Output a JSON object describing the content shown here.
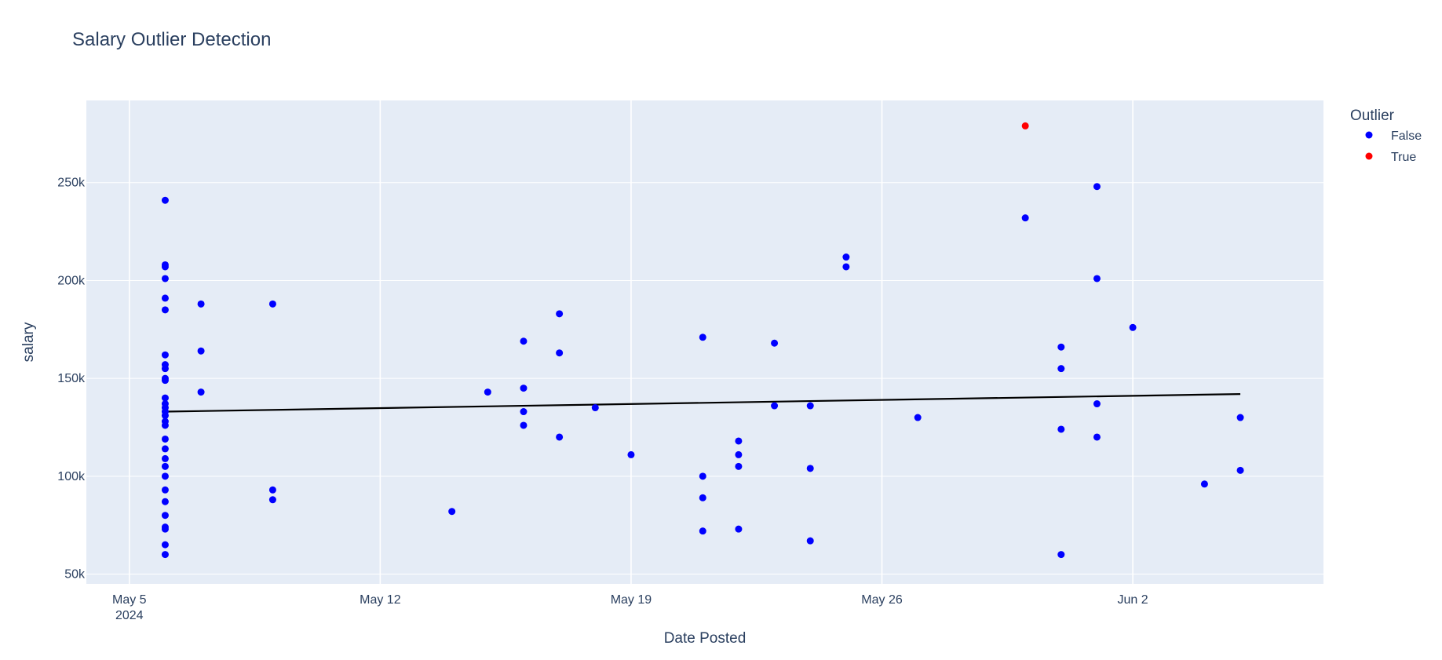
{
  "chart_data": {
    "type": "scatter",
    "title": "Salary Outlier Detection",
    "xlabel": "Date Posted",
    "ylabel": "salary",
    "x_type": "date",
    "xlim": [
      "2024-05-04",
      "2024-06-07"
    ],
    "ylim": [
      45000,
      292000
    ],
    "x_ticks": [
      {
        "date": "2024-05-05",
        "label": "May 5",
        "sublabel": "2024"
      },
      {
        "date": "2024-05-12",
        "label": "May 12",
        "sublabel": ""
      },
      {
        "date": "2024-05-19",
        "label": "May 19",
        "sublabel": ""
      },
      {
        "date": "2024-05-26",
        "label": "May 26",
        "sublabel": ""
      },
      {
        "date": "2024-06-02",
        "label": "Jun 2",
        "sublabel": ""
      }
    ],
    "y_ticks": [
      {
        "value": 50000,
        "label": "50k"
      },
      {
        "value": 100000,
        "label": "100k"
      },
      {
        "value": 150000,
        "label": "150k"
      },
      {
        "value": 200000,
        "label": "200k"
      },
      {
        "value": 250000,
        "label": "250k"
      }
    ],
    "grid": true,
    "legend": {
      "title": "Outlier",
      "placement": "top-right"
    },
    "series": [
      {
        "name": "False",
        "color": "#0000ff",
        "points": [
          [
            "2024-05-06",
            241000
          ],
          [
            "2024-05-06",
            208000
          ],
          [
            "2024-05-06",
            207000
          ],
          [
            "2024-05-06",
            201000
          ],
          [
            "2024-05-06",
            191000
          ],
          [
            "2024-05-06",
            185000
          ],
          [
            "2024-05-06",
            162000
          ],
          [
            "2024-05-06",
            157000
          ],
          [
            "2024-05-06",
            155000
          ],
          [
            "2024-05-06",
            150000
          ],
          [
            "2024-05-06",
            149000
          ],
          [
            "2024-05-06",
            140000
          ],
          [
            "2024-05-06",
            137000
          ],
          [
            "2024-05-06",
            135000
          ],
          [
            "2024-05-06",
            133000
          ],
          [
            "2024-05-06",
            131000
          ],
          [
            "2024-05-06",
            128000
          ],
          [
            "2024-05-06",
            126000
          ],
          [
            "2024-05-06",
            119000
          ],
          [
            "2024-05-06",
            114000
          ],
          [
            "2024-05-06",
            109000
          ],
          [
            "2024-05-06",
            105000
          ],
          [
            "2024-05-06",
            100000
          ],
          [
            "2024-05-06",
            93000
          ],
          [
            "2024-05-06",
            87000
          ],
          [
            "2024-05-06",
            80000
          ],
          [
            "2024-05-06",
            74000
          ],
          [
            "2024-05-06",
            73000
          ],
          [
            "2024-05-06",
            65000
          ],
          [
            "2024-05-06",
            60000
          ],
          [
            "2024-05-07",
            188000
          ],
          [
            "2024-05-07",
            164000
          ],
          [
            "2024-05-07",
            143000
          ],
          [
            "2024-05-09",
            188000
          ],
          [
            "2024-05-09",
            93000
          ],
          [
            "2024-05-09",
            88000
          ],
          [
            "2024-05-14",
            82000
          ],
          [
            "2024-05-15",
            143000
          ],
          [
            "2024-05-16",
            169000
          ],
          [
            "2024-05-16",
            145000
          ],
          [
            "2024-05-16",
            133000
          ],
          [
            "2024-05-16",
            126000
          ],
          [
            "2024-05-17",
            183000
          ],
          [
            "2024-05-17",
            163000
          ],
          [
            "2024-05-17",
            120000
          ],
          [
            "2024-05-18",
            135000
          ],
          [
            "2024-05-19",
            111000
          ],
          [
            "2024-05-21",
            171000
          ],
          [
            "2024-05-21",
            100000
          ],
          [
            "2024-05-21",
            89000
          ],
          [
            "2024-05-21",
            72000
          ],
          [
            "2024-05-22",
            118000
          ],
          [
            "2024-05-22",
            111000
          ],
          [
            "2024-05-22",
            105000
          ],
          [
            "2024-05-22",
            73000
          ],
          [
            "2024-05-23",
            168000
          ],
          [
            "2024-05-23",
            136000
          ],
          [
            "2024-05-24",
            136000
          ],
          [
            "2024-05-24",
            104000
          ],
          [
            "2024-05-24",
            67000
          ],
          [
            "2024-05-25",
            212000
          ],
          [
            "2024-05-25",
            207000
          ],
          [
            "2024-05-27",
            130000
          ],
          [
            "2024-05-30",
            232000
          ],
          [
            "2024-05-31",
            166000
          ],
          [
            "2024-05-31",
            155000
          ],
          [
            "2024-05-31",
            124000
          ],
          [
            "2024-05-31",
            60000
          ],
          [
            "2024-06-01",
            248000
          ],
          [
            "2024-06-01",
            201000
          ],
          [
            "2024-06-01",
            137000
          ],
          [
            "2024-06-01",
            120000
          ],
          [
            "2024-06-02",
            176000
          ],
          [
            "2024-06-04",
            96000
          ],
          [
            "2024-06-05",
            130000
          ],
          [
            "2024-06-05",
            103000
          ]
        ]
      },
      {
        "name": "True",
        "color": "#ff0000",
        "points": [
          [
            "2024-05-30",
            279000
          ]
        ]
      }
    ],
    "trendline": {
      "color": "#000000",
      "points": [
        [
          "2024-05-06",
          133000
        ],
        [
          "2024-06-05",
          142000
        ]
      ]
    }
  }
}
